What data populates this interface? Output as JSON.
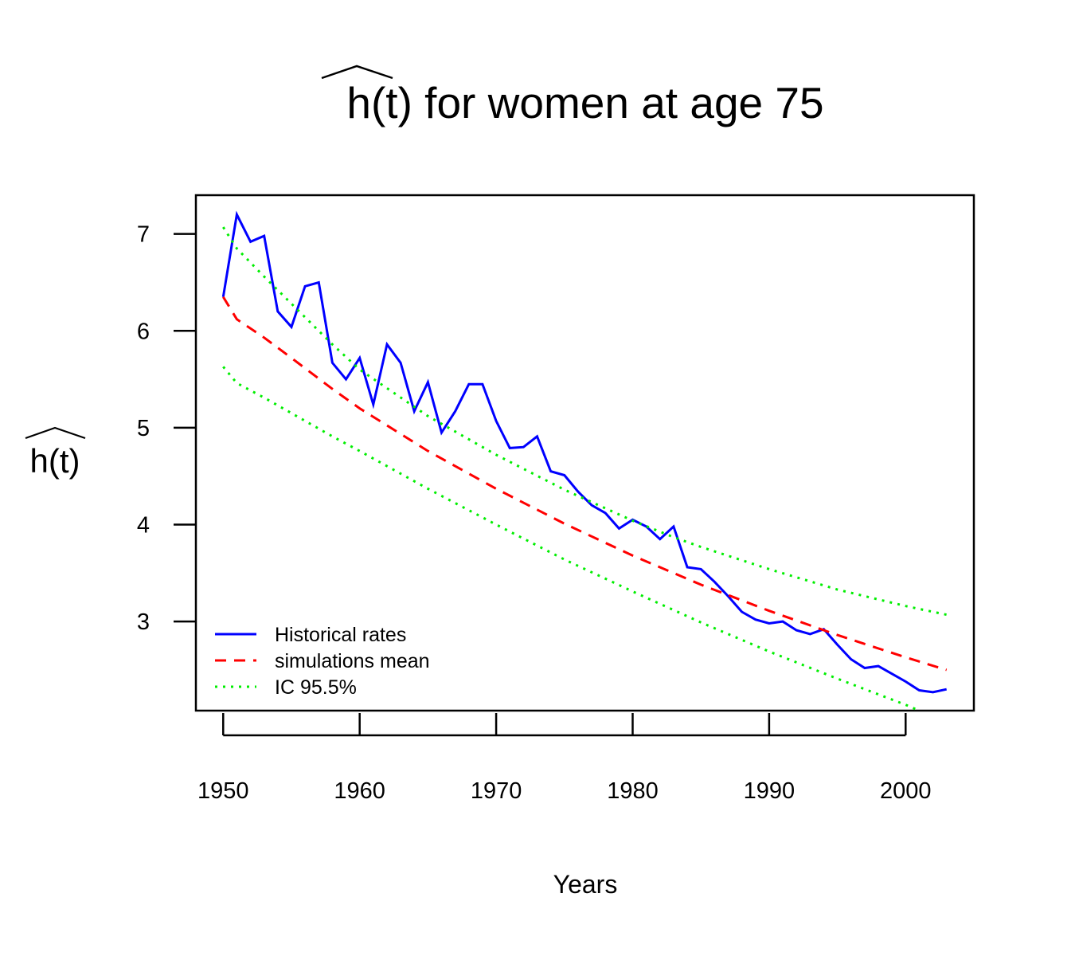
{
  "chart_data": {
    "type": "line",
    "title_symbol": "h(t)",
    "title_rest": " for women at age  75",
    "xlabel": "Years",
    "ylabel": "h(t)",
    "xlim": [
      1948,
      2005
    ],
    "ylim": [
      2.08,
      7.4
    ],
    "x_ticks": [
      1950,
      1960,
      1970,
      1980,
      1990,
      2000
    ],
    "y_ticks": [
      3,
      4,
      5,
      6,
      7
    ],
    "legend_position": "bottom-left",
    "series": [
      {
        "name": "Historical rates",
        "color": "#0000ff",
        "style": "solid",
        "x": [
          1950,
          1951,
          1952,
          1953,
          1954,
          1955,
          1956,
          1957,
          1958,
          1959,
          1960,
          1961,
          1962,
          1963,
          1964,
          1965,
          1966,
          1967,
          1968,
          1969,
          1970,
          1971,
          1972,
          1973,
          1974,
          1975,
          1976,
          1977,
          1978,
          1979,
          1980,
          1981,
          1982,
          1983,
          1984,
          1985,
          1986,
          1987,
          1988,
          1989,
          1990,
          1991,
          1992,
          1993,
          1994,
          1995,
          1996,
          1997,
          1998,
          1999,
          2000,
          2001,
          2002,
          2003
        ],
        "y": [
          6.35,
          7.2,
          6.92,
          6.98,
          6.2,
          6.04,
          6.46,
          6.5,
          5.67,
          5.5,
          5.72,
          5.24,
          5.86,
          5.67,
          5.17,
          5.47,
          4.95,
          5.17,
          5.45,
          5.45,
          5.07,
          4.79,
          4.8,
          4.91,
          4.55,
          4.51,
          4.34,
          4.2,
          4.12,
          3.96,
          4.05,
          3.98,
          3.85,
          3.98,
          3.56,
          3.54,
          3.41,
          3.26,
          3.1,
          3.02,
          2.98,
          3.0,
          2.91,
          2.87,
          2.92,
          2.76,
          2.61,
          2.52,
          2.54,
          2.46,
          2.38,
          2.29,
          2.27,
          2.3
        ]
      },
      {
        "name": "simulations mean",
        "color": "#ff0000",
        "style": "dashed",
        "x": [
          1950,
          1951,
          1953,
          1955,
          1958,
          1960,
          1965,
          1970,
          1975,
          1980,
          1985,
          1990,
          1995,
          2000,
          2003
        ],
        "y": [
          6.35,
          6.12,
          5.93,
          5.72,
          5.4,
          5.2,
          4.76,
          4.37,
          4.01,
          3.68,
          3.38,
          3.11,
          2.86,
          2.63,
          2.5
        ]
      },
      {
        "name": "IC  95.5%",
        "color": "#00ee00",
        "style": "dotted",
        "x": [
          1950,
          1951,
          1953,
          1955,
          1958,
          1960,
          1965,
          1970,
          1975,
          1980,
          1983,
          1985,
          1990,
          1995,
          2000,
          2003
        ],
        "y": [
          7.07,
          6.85,
          6.56,
          6.28,
          5.86,
          5.6,
          5.12,
          4.72,
          4.36,
          4.04,
          3.87,
          3.77,
          3.54,
          3.33,
          3.16,
          3.07
        ]
      },
      {
        "name": "",
        "color": "#00ee00",
        "style": "dotted",
        "x": [
          1950,
          1951,
          1953,
          1955,
          1958,
          1960,
          1965,
          1970,
          1975,
          1980,
          1985,
          1990,
          1995,
          2000,
          2001
        ],
        "y": [
          5.63,
          5.46,
          5.31,
          5.15,
          4.91,
          4.76,
          4.37,
          4.0,
          3.64,
          3.31,
          2.99,
          2.69,
          2.41,
          2.14,
          2.08
        ]
      }
    ]
  }
}
